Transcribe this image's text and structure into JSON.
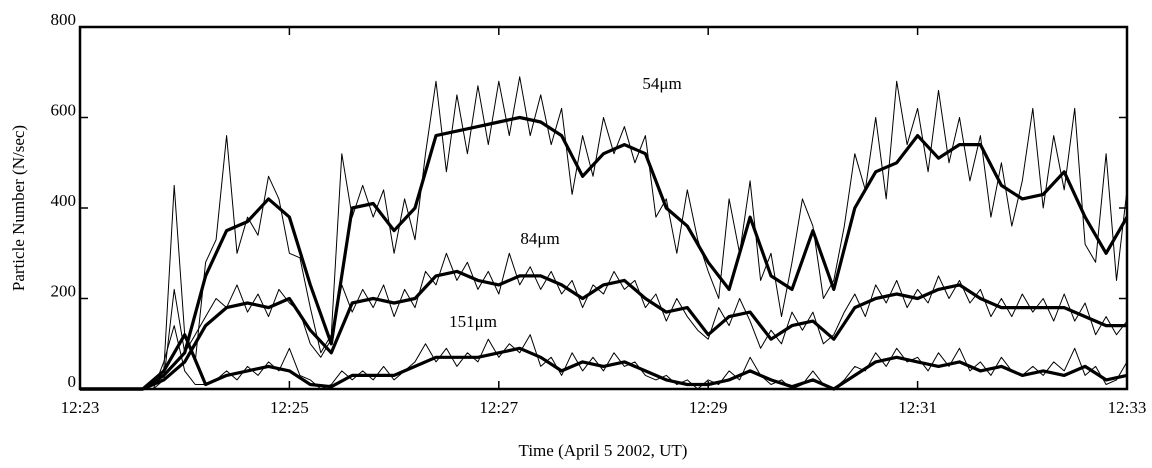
{
  "chart_data": {
    "type": "line",
    "x_label": "Time (April 5 2002, UT)",
    "y_label": "Particle Number (N/sec)",
    "xlim": [
      743,
      753
    ],
    "xticks": [
      {
        "value": 743,
        "label": "12:23"
      },
      {
        "value": 745,
        "label": "12:25"
      },
      {
        "value": 747,
        "label": "12:27"
      },
      {
        "value": 749,
        "label": "12:29"
      },
      {
        "value": 751,
        "label": "12:31"
      },
      {
        "value": 753,
        "label": "12:33"
      }
    ],
    "ylim": [
      0,
      800
    ],
    "yticks": [
      0,
      200,
      400,
      600,
      800
    ],
    "series": [
      {
        "color": "#000000",
        "x": [
          743,
          743.1,
          743.2,
          743.3,
          743.4,
          743.5,
          743.6,
          743.7,
          743.8,
          743.9,
          744,
          744.1,
          744.2,
          744.3,
          744.4,
          744.5,
          744.6,
          744.7,
          744.8,
          744.9,
          745,
          745.1,
          745.2,
          745.3,
          745.4,
          745.5,
          745.6,
          745.7,
          745.8,
          745.9,
          746,
          746.1,
          746.2,
          746.3,
          746.4,
          746.5,
          746.6,
          746.7,
          746.8,
          746.9,
          747,
          747.1,
          747.2,
          747.3,
          747.4,
          747.5,
          747.6,
          747.7,
          747.8,
          747.9,
          748,
          748.1,
          748.2,
          748.3,
          748.4,
          748.5,
          748.6,
          748.7,
          748.8,
          748.9,
          749,
          749.1,
          749.2,
          749.3,
          749.4,
          749.5,
          749.6,
          749.7,
          749.8,
          749.9,
          750,
          750.1,
          750.2,
          750.3,
          750.4,
          750.5,
          750.6,
          750.7,
          750.8,
          750.9,
          751,
          751.1,
          751.2,
          751.3,
          751.4,
          751.5,
          751.6,
          751.7,
          751.8,
          751.9,
          752,
          752.1,
          752.2,
          752.3,
          752.4,
          752.5,
          752.6,
          752.7,
          752.8,
          752.9,
          753
        ],
        "values": [
          0,
          0,
          0,
          0,
          0,
          0,
          0,
          10,
          40,
          450,
          120,
          60,
          280,
          330,
          560,
          300,
          380,
          340,
          470,
          420,
          300,
          290,
          180,
          80,
          120,
          520,
          380,
          450,
          380,
          440,
          300,
          420,
          330,
          520,
          680,
          480,
          650,
          520,
          670,
          540,
          680,
          560,
          690,
          560,
          650,
          540,
          620,
          430,
          560,
          470,
          600,
          520,
          580,
          500,
          560,
          380,
          420,
          300,
          440,
          330,
          260,
          200,
          420,
          300,
          460,
          240,
          300,
          160,
          280,
          420,
          360,
          200,
          240,
          360,
          520,
          440,
          600,
          420,
          680,
          540,
          620,
          480,
          660,
          500,
          600,
          460,
          560,
          380,
          500,
          360,
          460,
          620,
          400,
          560,
          440,
          620,
          320,
          280,
          520,
          240,
          440
        ]
      },
      {
        "color": "#000000",
        "x": [
          743,
          743.1,
          743.2,
          743.3,
          743.4,
          743.5,
          743.6,
          743.7,
          743.8,
          743.9,
          744,
          744.1,
          744.2,
          744.3,
          744.4,
          744.5,
          744.6,
          744.7,
          744.8,
          744.9,
          745,
          745.1,
          745.2,
          745.3,
          745.4,
          745.5,
          745.6,
          745.7,
          745.8,
          745.9,
          746,
          746.1,
          746.2,
          746.3,
          746.4,
          746.5,
          746.6,
          746.7,
          746.8,
          746.9,
          747,
          747.1,
          747.2,
          747.3,
          747.4,
          747.5,
          747.6,
          747.7,
          747.8,
          747.9,
          748,
          748.1,
          748.2,
          748.3,
          748.4,
          748.5,
          748.6,
          748.7,
          748.8,
          748.9,
          749,
          749.1,
          749.2,
          749.3,
          749.4,
          749.5,
          749.6,
          749.7,
          749.8,
          749.9,
          750,
          750.1,
          750.2,
          750.3,
          750.4,
          750.5,
          750.6,
          750.7,
          750.8,
          750.9,
          751,
          751.1,
          751.2,
          751.3,
          751.4,
          751.5,
          751.6,
          751.7,
          751.8,
          751.9,
          752,
          752.1,
          752.2,
          752.3,
          752.4,
          752.5,
          752.6,
          752.7,
          752.8,
          752.9,
          753
        ],
        "values": [
          0,
          0,
          0,
          0,
          0,
          0,
          0,
          0,
          20,
          220,
          80,
          120,
          160,
          200,
          180,
          230,
          170,
          210,
          160,
          220,
          190,
          170,
          100,
          70,
          110,
          230,
          170,
          220,
          180,
          230,
          160,
          220,
          180,
          260,
          230,
          300,
          240,
          280,
          220,
          260,
          210,
          300,
          230,
          270,
          220,
          260,
          210,
          240,
          180,
          230,
          210,
          260,
          220,
          240,
          180,
          210,
          150,
          200,
          160,
          130,
          110,
          180,
          140,
          200,
          150,
          90,
          130,
          100,
          170,
          130,
          170,
          100,
          120,
          170,
          210,
          160,
          230,
          190,
          240,
          180,
          220,
          190,
          250,
          200,
          240,
          190,
          220,
          160,
          200,
          160,
          210,
          170,
          200,
          150,
          210,
          150,
          190,
          120,
          160,
          120,
          150
        ]
      },
      {
        "color": "#000000",
        "x": [
          743,
          743.1,
          743.2,
          743.3,
          743.4,
          743.5,
          743.6,
          743.7,
          743.8,
          743.9,
          744,
          744.1,
          744.2,
          744.3,
          744.4,
          744.5,
          744.6,
          744.7,
          744.8,
          744.9,
          745,
          745.1,
          745.2,
          745.3,
          745.4,
          745.5,
          745.6,
          745.7,
          745.8,
          745.9,
          746,
          746.1,
          746.2,
          746.3,
          746.4,
          746.5,
          746.6,
          746.7,
          746.8,
          746.9,
          747,
          747.1,
          747.2,
          747.3,
          747.4,
          747.5,
          747.6,
          747.7,
          747.8,
          747.9,
          748,
          748.1,
          748.2,
          748.3,
          748.4,
          748.5,
          748.6,
          748.7,
          748.8,
          748.9,
          749,
          749.1,
          749.2,
          749.3,
          749.4,
          749.5,
          749.6,
          749.7,
          749.8,
          749.9,
          750,
          750.1,
          750.2,
          750.3,
          750.4,
          750.5,
          750.6,
          750.7,
          750.8,
          750.9,
          751,
          751.1,
          751.2,
          751.3,
          751.4,
          751.5,
          751.6,
          751.7,
          751.8,
          751.9,
          752,
          752.1,
          752.2,
          752.3,
          752.4,
          752.5,
          752.6,
          752.7,
          752.8,
          752.9,
          753
        ],
        "values": [
          0,
          0,
          0,
          0,
          0,
          0,
          0,
          0,
          60,
          140,
          40,
          10,
          10,
          20,
          40,
          20,
          50,
          30,
          60,
          40,
          90,
          30,
          20,
          0,
          10,
          40,
          20,
          40,
          20,
          50,
          20,
          40,
          60,
          100,
          60,
          90,
          50,
          80,
          60,
          110,
          70,
          100,
          80,
          120,
          50,
          70,
          30,
          80,
          40,
          70,
          40,
          80,
          50,
          60,
          30,
          20,
          30,
          10,
          20,
          0,
          20,
          10,
          40,
          20,
          70,
          30,
          10,
          20,
          0,
          10,
          40,
          10,
          0,
          20,
          50,
          40,
          80,
          50,
          90,
          60,
          70,
          40,
          80,
          50,
          90,
          40,
          60,
          30,
          70,
          40,
          30,
          50,
          30,
          60,
          40,
          90,
          30,
          50,
          10,
          20,
          60
        ]
      },
      {
        "name": "54μm",
        "color": "#000000",
        "x": [
          743,
          743.2,
          743.4,
          743.6,
          743.8,
          744,
          744.2,
          744.4,
          744.6,
          744.8,
          745,
          745.2,
          745.4,
          745.6,
          745.8,
          746,
          746.2,
          746.4,
          746.6,
          746.8,
          747,
          747.2,
          747.4,
          747.6,
          747.8,
          748,
          748.2,
          748.4,
          748.6,
          748.8,
          749,
          749.2,
          749.4,
          749.6,
          749.8,
          750,
          750.2,
          750.4,
          750.6,
          750.8,
          751,
          751.2,
          751.4,
          751.6,
          751.8,
          752,
          752.2,
          752.4,
          752.6,
          752.8,
          753
        ],
        "values": [
          0,
          0,
          0,
          0,
          30,
          80,
          250,
          350,
          370,
          420,
          380,
          230,
          100,
          400,
          410,
          350,
          400,
          560,
          570,
          580,
          590,
          600,
          590,
          560,
          470,
          520,
          540,
          520,
          400,
          360,
          280,
          220,
          380,
          250,
          220,
          350,
          220,
          400,
          480,
          500,
          560,
          510,
          540,
          540,
          450,
          420,
          430,
          480,
          380,
          300,
          380
        ]
      },
      {
        "name": "84μm",
        "color": "#000000",
        "x": [
          743,
          743.2,
          743.4,
          743.6,
          743.8,
          744,
          744.2,
          744.4,
          744.6,
          744.8,
          745,
          745.2,
          745.4,
          745.6,
          745.8,
          746,
          746.2,
          746.4,
          746.6,
          746.8,
          747,
          747.2,
          747.4,
          747.6,
          747.8,
          748,
          748.2,
          748.4,
          748.6,
          748.8,
          749,
          749.2,
          749.4,
          749.6,
          749.8,
          750,
          750.2,
          750.4,
          750.6,
          750.8,
          751,
          751.2,
          751.4,
          751.6,
          751.8,
          752,
          752.2,
          752.4,
          752.6,
          752.8,
          753
        ],
        "values": [
          0,
          0,
          0,
          0,
          20,
          60,
          140,
          180,
          190,
          180,
          200,
          130,
          80,
          190,
          200,
          190,
          200,
          250,
          260,
          240,
          230,
          250,
          250,
          230,
          200,
          230,
          240,
          200,
          170,
          180,
          120,
          160,
          170,
          110,
          140,
          150,
          110,
          180,
          200,
          210,
          200,
          220,
          230,
          200,
          180,
          180,
          180,
          180,
          160,
          140,
          140
        ]
      },
      {
        "name": "151μm",
        "color": "#000000",
        "x": [
          743,
          743.2,
          743.4,
          743.6,
          743.8,
          744,
          744.2,
          744.4,
          744.6,
          744.8,
          745,
          745.2,
          745.4,
          745.6,
          745.8,
          746,
          746.2,
          746.4,
          746.6,
          746.8,
          747,
          747.2,
          747.4,
          747.6,
          747.8,
          748,
          748.2,
          748.4,
          748.6,
          748.8,
          749,
          749.2,
          749.4,
          749.6,
          749.8,
          750,
          750.2,
          750.4,
          750.6,
          750.8,
          751,
          751.2,
          751.4,
          751.6,
          751.8,
          752,
          752.2,
          752.4,
          752.6,
          752.8,
          753
        ],
        "values": [
          0,
          0,
          0,
          0,
          40,
          120,
          10,
          30,
          40,
          50,
          40,
          10,
          5,
          30,
          30,
          30,
          50,
          70,
          70,
          70,
          80,
          90,
          70,
          40,
          60,
          50,
          60,
          40,
          20,
          10,
          10,
          20,
          40,
          20,
          5,
          20,
          0,
          30,
          60,
          70,
          60,
          50,
          60,
          40,
          50,
          30,
          40,
          30,
          50,
          20,
          30
        ]
      }
    ]
  }
}
